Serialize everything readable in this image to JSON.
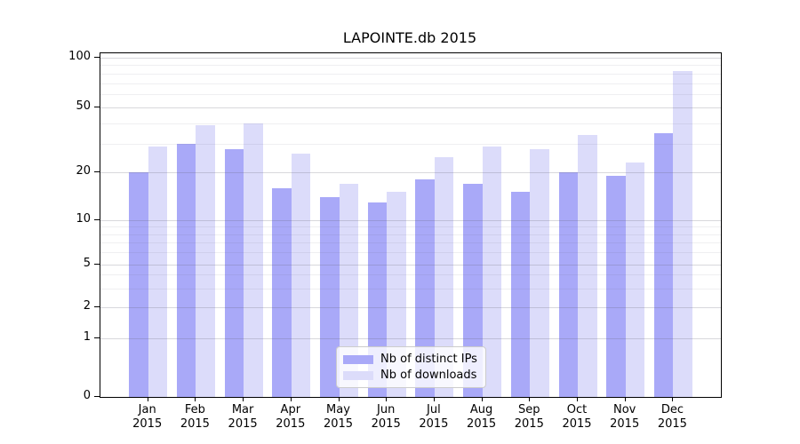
{
  "title": "LAPOINTE.db 2015",
  "colors": {
    "distinct_ips": "#a9a9f8",
    "downloads": "#dcdcfa",
    "axis": "#000000",
    "legend_border": "#cccccc"
  },
  "legend": {
    "entries": [
      {
        "label": "Nb of distinct IPs",
        "color_key": "distinct_ips"
      },
      {
        "label": "Nb of downloads",
        "color_key": "downloads"
      }
    ]
  },
  "chart_data": {
    "type": "bar",
    "title": "LAPOINTE.db 2015",
    "categories": [
      "Jan",
      "Feb",
      "Mar",
      "Apr",
      "May",
      "Jun",
      "Jul",
      "Aug",
      "Sep",
      "Oct",
      "Nov",
      "Dec"
    ],
    "category_year": "2015",
    "series": [
      {
        "name": "Nb of distinct IPs",
        "color": "#a9a9f8",
        "values": [
          20,
          30,
          28,
          16,
          14,
          13,
          18,
          17,
          15,
          20,
          19,
          35
        ]
      },
      {
        "name": "Nb of downloads",
        "color": "#dcdcfa",
        "values": [
          29,
          39,
          40,
          26,
          17,
          15,
          25,
          29,
          28,
          34,
          23,
          83
        ]
      }
    ],
    "xlabel": "",
    "ylabel": "",
    "yscale": "log-like (symlog, linear below 1)",
    "yticks": [
      100,
      50,
      20,
      10,
      5,
      2,
      1,
      0
    ],
    "minor_gridlines": [
      3,
      4,
      6,
      7,
      8,
      9,
      30,
      40,
      60,
      70,
      80,
      90
    ],
    "ylim": [
      0,
      100
    ],
    "grid": true,
    "legend_position": "lower center"
  }
}
